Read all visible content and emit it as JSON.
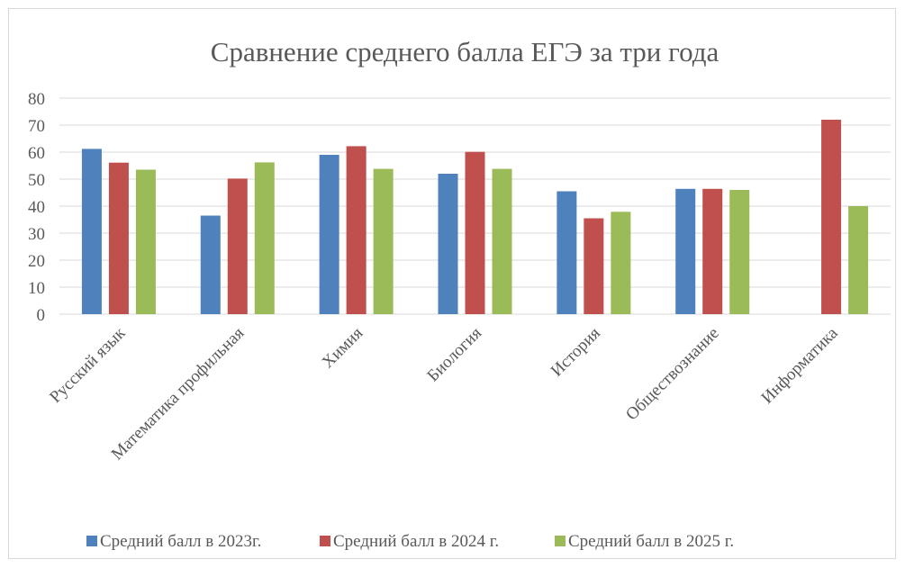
{
  "chart_data": {
    "type": "bar",
    "title": "Сравнение среднего балла ЕГЭ за три года",
    "xlabel": "",
    "ylabel": "",
    "ylim": [
      0,
      80
    ],
    "yticks": [
      0,
      10,
      20,
      30,
      40,
      50,
      60,
      70,
      80
    ],
    "grid": true,
    "legend_position": "bottom",
    "categories": [
      "Русский язык",
      "Математика профильная",
      "Химия",
      "Биология",
      "История",
      "Обществознание",
      "Информатика"
    ],
    "series": [
      {
        "name": "Средний балл в 2023г.",
        "color": "#4f81bd",
        "values": [
          61.2,
          36.5,
          59,
          52,
          45.5,
          46.4,
          null
        ]
      },
      {
        "name": "Средний балл в 2024 г.",
        "color": "#c0504d",
        "values": [
          56.1,
          50.2,
          62.2,
          60.1,
          35.5,
          46.4,
          72
        ]
      },
      {
        "name": "Средний балл в 2025 г.",
        "color": "#9bbb59",
        "values": [
          53.5,
          56.2,
          53.8,
          53.8,
          37.9,
          46,
          40
        ]
      }
    ]
  }
}
